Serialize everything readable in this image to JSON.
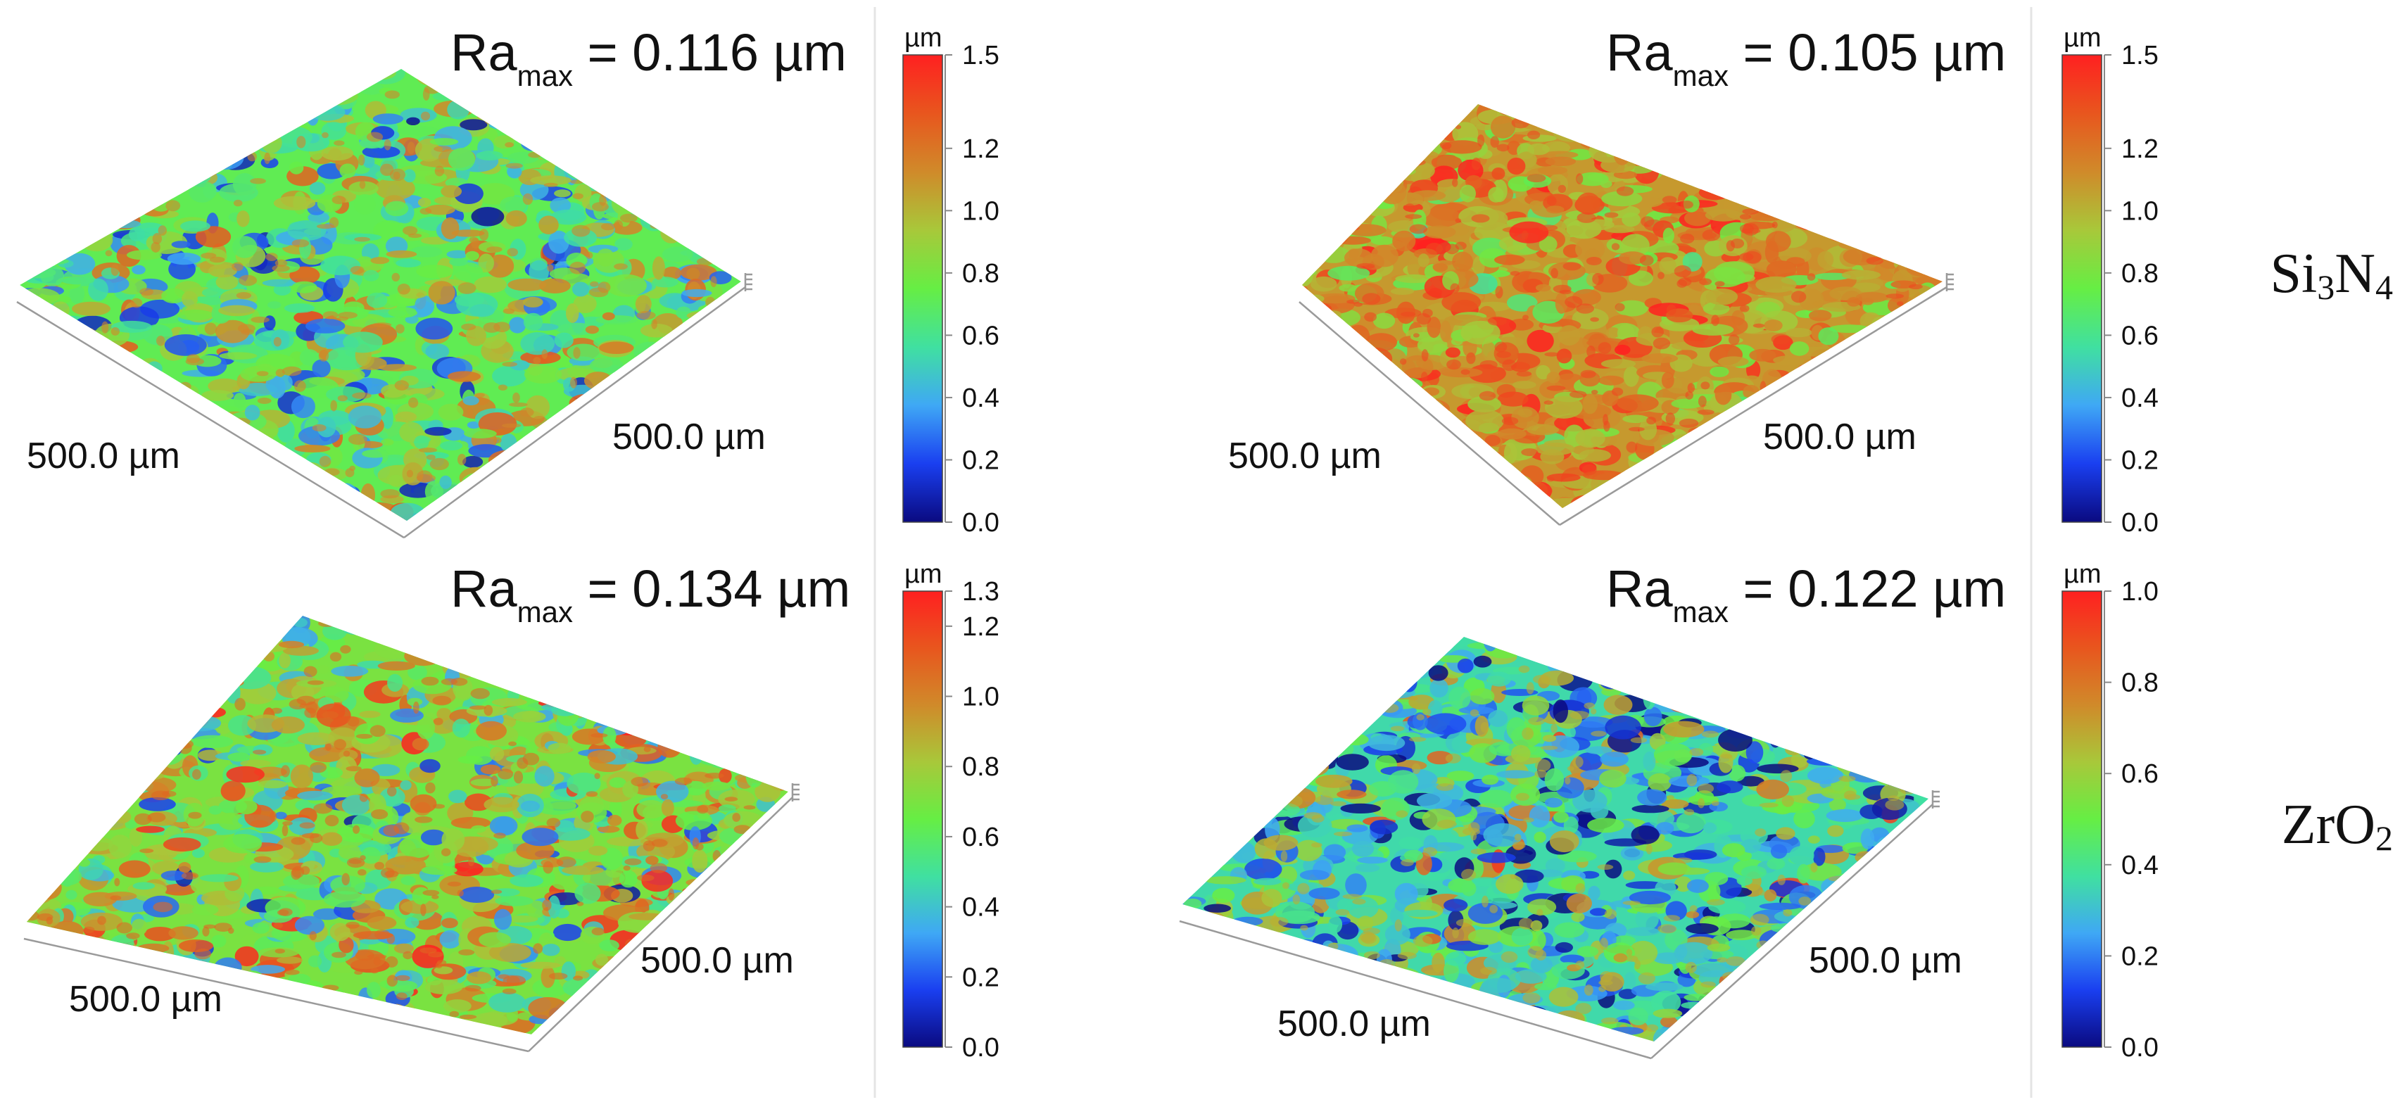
{
  "figure": {
    "row_labels": [
      {
        "base1": "Si",
        "sub1": "3",
        "base2": "N",
        "sub2": "4"
      },
      {
        "base1": "ZrO",
        "sub1": "2",
        "base2": "",
        "sub2": ""
      }
    ]
  },
  "colormap": [
    "#0a0a80",
    "#1a3ff0",
    "#3fa8f5",
    "#40e0a0",
    "#66ee44",
    "#a8c83a",
    "#d08a2a",
    "#e8561e",
    "#ff2020"
  ],
  "chart_data": [
    {
      "type": "heatmap",
      "title": {
        "prefix": "Ra",
        "sub": "max",
        "suffix": " = 0.116 µm"
      },
      "xlabel": "500.0 µm",
      "ylabel": "500.0 µm",
      "colorbar": {
        "unit": "µm",
        "range": [
          0.0,
          1.5
        ],
        "ticks": [
          "0.0",
          "0.2",
          "0.4",
          "0.6",
          "0.8",
          "1.0",
          "1.2",
          "1.5"
        ]
      },
      "surface_mean": 0.72,
      "surface_spread": 0.42
    },
    {
      "type": "heatmap",
      "title": {
        "prefix": "Ra",
        "sub": "max",
        "suffix": " = 0.105 µm"
      },
      "xlabel": "500.0 µm",
      "ylabel": "500.0 µm",
      "colorbar": {
        "unit": "µm",
        "range": [
          0.0,
          1.5
        ],
        "ticks": [
          "0.0",
          "0.2",
          "0.4",
          "0.6",
          "0.8",
          "1.0",
          "1.2",
          "1.5"
        ]
      },
      "surface_mean": 1.08,
      "surface_spread": 0.28
    },
    {
      "type": "heatmap",
      "title": {
        "prefix": "Ra",
        "sub": "max",
        "suffix": " = 0.134 µm"
      },
      "xlabel": "500.0 µm",
      "ylabel": "500.0 µm",
      "colorbar": {
        "unit": "µm",
        "range": [
          0.0,
          1.3
        ],
        "ticks": [
          "0.0",
          "0.2",
          "0.4",
          "0.6",
          "0.8",
          "1.0",
          "1.2",
          "1.3"
        ]
      },
      "surface_mean": 0.7,
      "surface_spread": 0.38
    },
    {
      "type": "heatmap",
      "title": {
        "prefix": "Ra",
        "sub": "max",
        "suffix": " = 0.122 µm"
      },
      "xlabel": "500.0 µm",
      "ylabel": "500.0 µm",
      "colorbar": {
        "unit": "µm",
        "range": [
          0.0,
          1.0
        ],
        "ticks": [
          "0.0",
          "0.2",
          "0.4",
          "0.6",
          "0.8",
          "1.0"
        ]
      },
      "surface_mean": 0.36,
      "surface_spread": 0.32
    }
  ]
}
